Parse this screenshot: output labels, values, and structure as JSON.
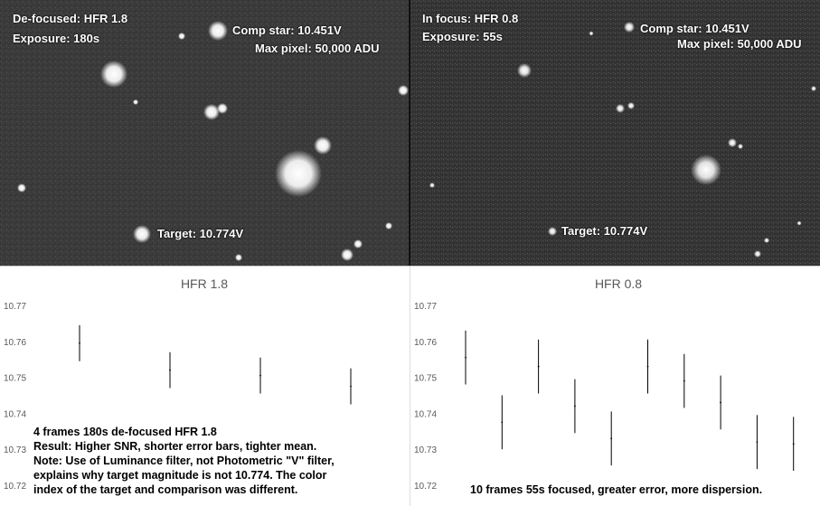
{
  "panels": [
    {
      "photo": {
        "line1": "De-focused: HFR 1.8",
        "line2": "Exposure: 180s",
        "comp_star": "Comp star: 10.451V",
        "max_pixel": "Max pixel: 50,000 ADU",
        "target": "Target: 10.774V"
      },
      "note": "4 frames 180s de-focused HFR 1.8\nResult: Higher SNR, shorter error bars, tighter mean.\nNote: Use of Luminance filter, not Photometric \"V\" filter,\nexplains why target magnitude is not 10.774. The color\nindex of the target and comparison was different."
    },
    {
      "photo": {
        "line1": "In focus: HFR 0.8",
        "line2": "Exposure: 55s",
        "comp_star": "Comp star: 10.451V",
        "max_pixel": "Max pixel: 50,000 ADU",
        "target": "Target: 10.774V"
      },
      "note": "10 frames 55s focused, greater error, more dispersion."
    }
  ],
  "chart_data": [
    {
      "type": "scatter",
      "title": "HFR 1.8",
      "ylim": [
        10.72,
        10.77
      ],
      "yticks": [
        "10.77",
        "10.76",
        "10.75",
        "10.74",
        "10.73",
        "10.72"
      ],
      "grid": false,
      "points": [
        {
          "x": 1,
          "y": 10.7595,
          "low": 10.7545,
          "high": 10.7645
        },
        {
          "x": 2,
          "y": 10.752,
          "low": 10.747,
          "high": 10.757
        },
        {
          "x": 3,
          "y": 10.7505,
          "low": 10.7455,
          "high": 10.7555
        },
        {
          "x": 4,
          "y": 10.7475,
          "low": 10.7425,
          "high": 10.7525
        }
      ]
    },
    {
      "type": "scatter",
      "title": "HFR 0.8",
      "ylim": [
        10.72,
        10.77
      ],
      "yticks": [
        "10.77",
        "10.76",
        "10.75",
        "10.74",
        "10.73",
        "10.72"
      ],
      "grid": false,
      "points": [
        {
          "x": 1,
          "y": 10.7555,
          "low": 10.748,
          "high": 10.763
        },
        {
          "x": 2,
          "y": 10.7375,
          "low": 10.73,
          "high": 10.745
        },
        {
          "x": 3,
          "y": 10.753,
          "low": 10.7455,
          "high": 10.7605
        },
        {
          "x": 4,
          "y": 10.742,
          "low": 10.7345,
          "high": 10.7495
        },
        {
          "x": 5,
          "y": 10.733,
          "low": 10.7255,
          "high": 10.7405
        },
        {
          "x": 6,
          "y": 10.753,
          "low": 10.7455,
          "high": 10.7605
        },
        {
          "x": 7,
          "y": 10.749,
          "low": 10.7415,
          "high": 10.7565
        },
        {
          "x": 8,
          "y": 10.743,
          "low": 10.7355,
          "high": 10.7505
        },
        {
          "x": 9,
          "y": 10.732,
          "low": 10.7245,
          "high": 10.7395
        },
        {
          "x": 10,
          "y": 10.7315,
          "low": 10.724,
          "high": 10.739
        }
      ]
    }
  ]
}
